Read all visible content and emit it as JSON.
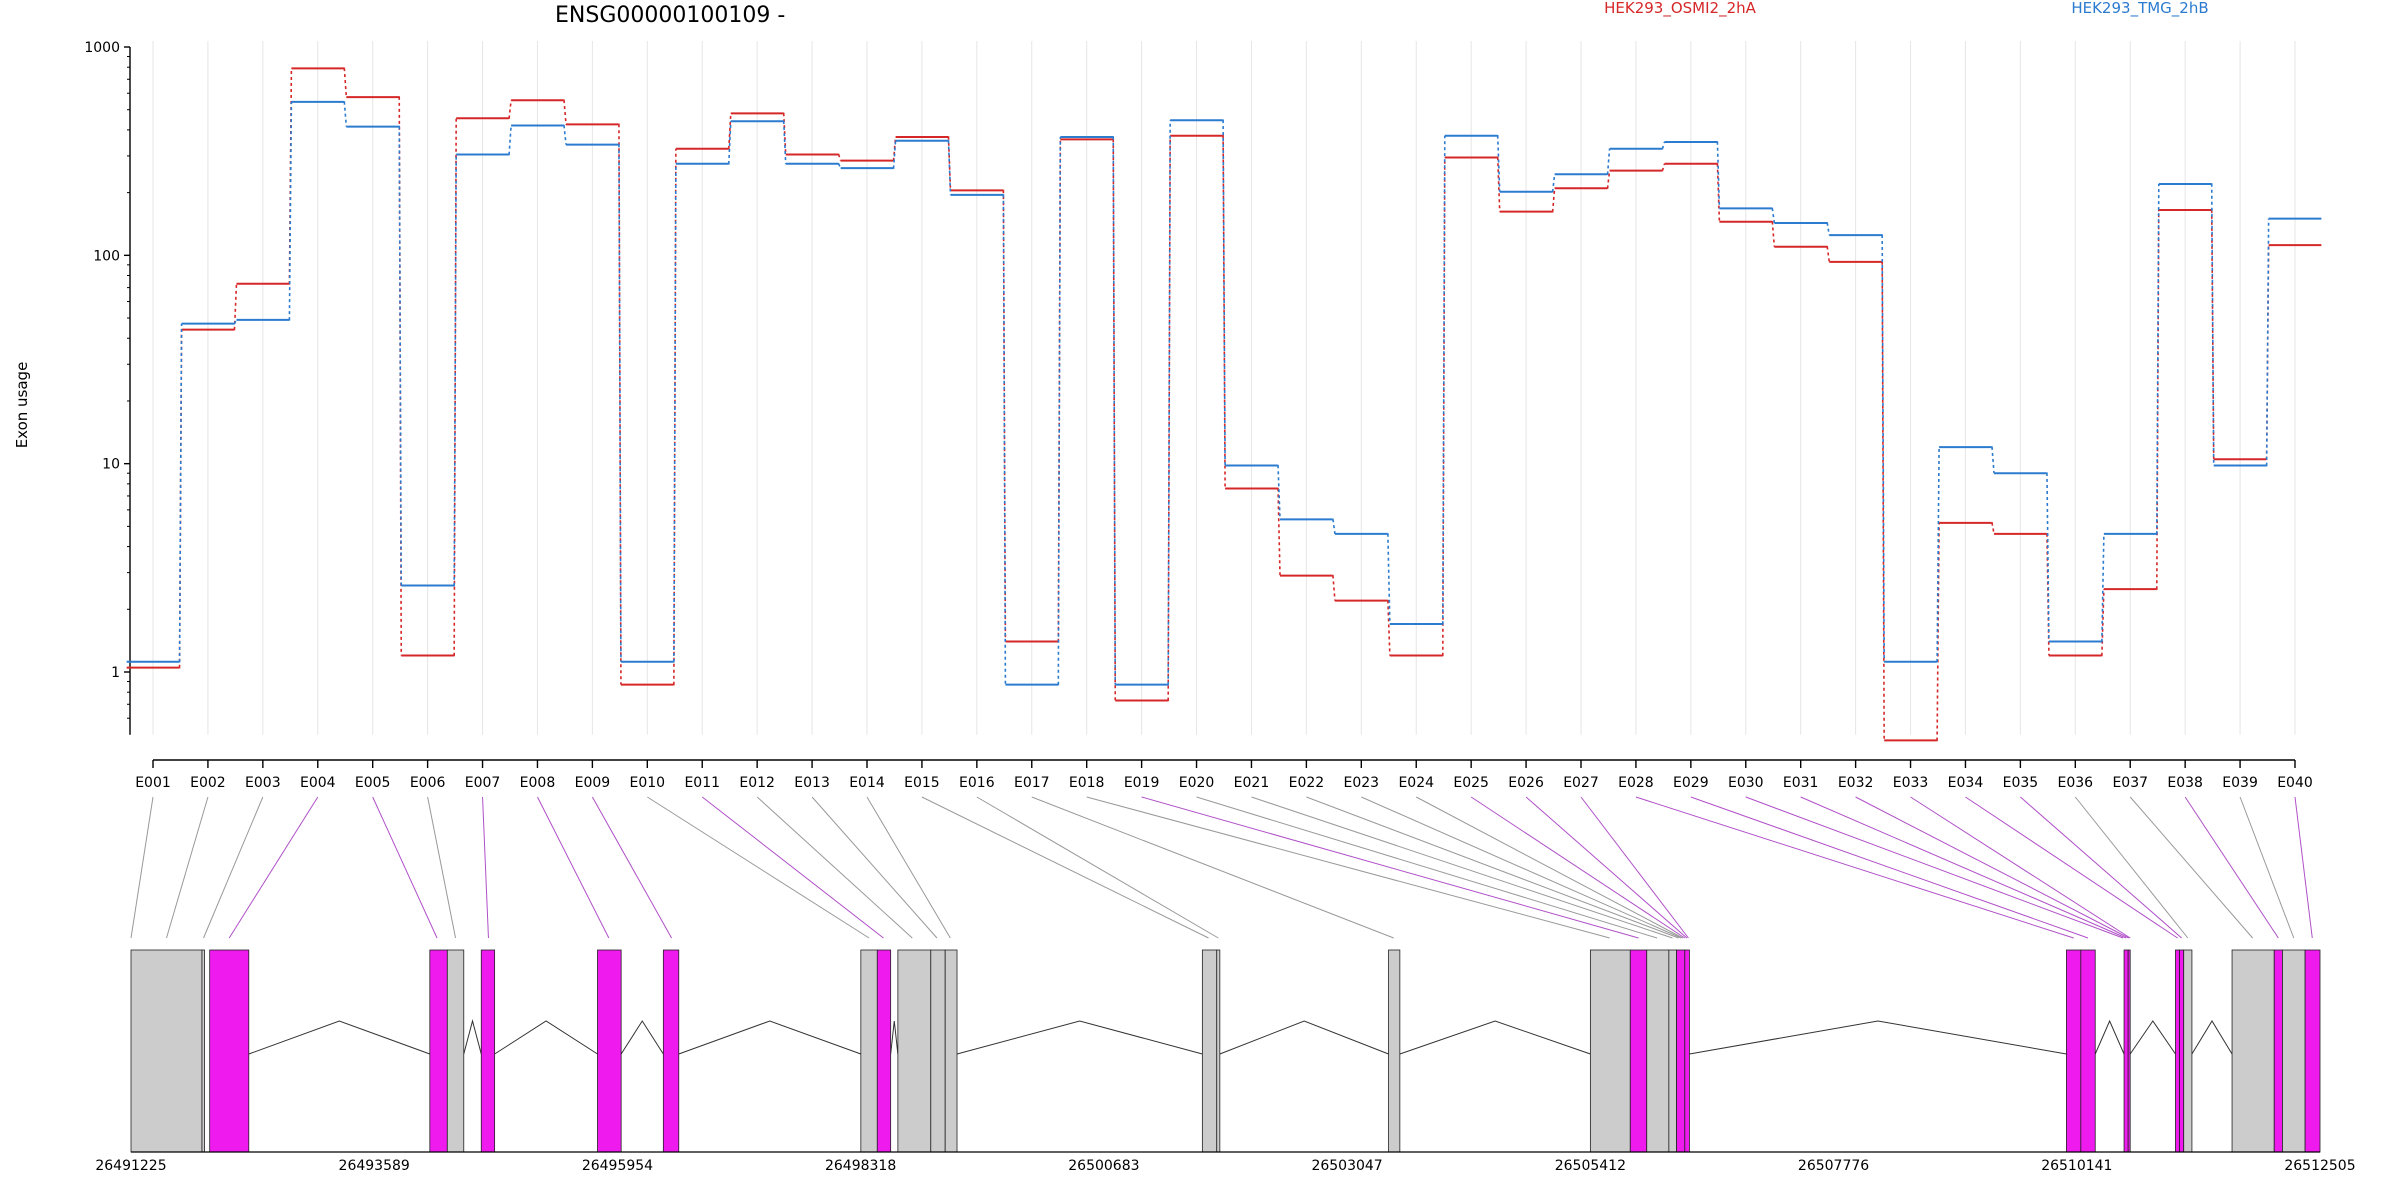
{
  "chart_data": {
    "type": "line",
    "title": "ENSG00000100109 -",
    "ylabel": "Exon usage",
    "xlabel": "",
    "yscale": "log",
    "ylim": [
      0.5,
      1000
    ],
    "yticks": [
      "1000",
      "100",
      "10",
      "1"
    ],
    "yticks_values": [
      1000,
      100,
      10,
      1
    ],
    "categories": [
      "E001",
      "E002",
      "E003",
      "E004",
      "E005",
      "E006",
      "E007",
      "E008",
      "E009",
      "E010",
      "E011",
      "E012",
      "E013",
      "E014",
      "E015",
      "E016",
      "E017",
      "E018",
      "E019",
      "E020",
      "E021",
      "E022",
      "E023",
      "E024",
      "E025",
      "E026",
      "E027",
      "E028",
      "E029",
      "E030",
      "E031",
      "E032",
      "E033",
      "E034",
      "E035",
      "E036",
      "E037",
      "E038",
      "E039",
      "E040"
    ],
    "series": [
      {
        "name": "HEK293_OSMI2_2hA",
        "color": "#d62728",
        "values": [
          1.05,
          44,
          73,
          790,
          575,
          1.2,
          455,
          555,
          425,
          0.87,
          325,
          480,
          305,
          285,
          370,
          205,
          1.4,
          360,
          0.73,
          375,
          7.6,
          2.9,
          2.2,
          1.2,
          295,
          162,
          210,
          255,
          275,
          145,
          110,
          93,
          0.47,
          5.2,
          4.6,
          1.2,
          2.5,
          165,
          10.5,
          112
        ]
      },
      {
        "name": "HEK293_TMG_2hB",
        "color": "#2b7bcf",
        "values": [
          1.12,
          47,
          49,
          545,
          415,
          2.6,
          305,
          420,
          340,
          1.12,
          275,
          440,
          275,
          262,
          355,
          195,
          0.87,
          370,
          0.87,
          445,
          9.8,
          5.4,
          4.6,
          1.7,
          375,
          202,
          245,
          325,
          350,
          168,
          143,
          125,
          1.12,
          12,
          9.0,
          1.4,
          4.6,
          220,
          9.8,
          150
        ]
      }
    ],
    "gene_model": {
      "coordinates": [
        "26491225",
        "26493589",
        "26495954",
        "26498318",
        "26500683",
        "26503047",
        "26505412",
        "26507776",
        "26510141",
        "26512505"
      ],
      "coordinate_values": [
        26491225,
        26493589,
        26495954,
        26498318,
        26500683,
        26503047,
        26505412,
        26507776,
        26510141,
        26512505
      ],
      "exons": [
        {
          "start": 26491225,
          "end": 26491915,
          "significant": false
        },
        {
          "start": 26491915,
          "end": 26491940,
          "significant": false
        },
        {
          "start": 26491990,
          "end": 26492370,
          "significant": true
        },
        {
          "start": 26494130,
          "end": 26494300,
          "significant": true
        },
        {
          "start": 26494300,
          "end": 26494460,
          "significant": false
        },
        {
          "start": 26494630,
          "end": 26494760,
          "significant": true
        },
        {
          "start": 26495760,
          "end": 26495990,
          "significant": true
        },
        {
          "start": 26496400,
          "end": 26496550,
          "significant": true
        },
        {
          "start": 26498320,
          "end": 26498480,
          "significant": false
        },
        {
          "start": 26498480,
          "end": 26498610,
          "significant": true
        },
        {
          "start": 26498680,
          "end": 26499000,
          "significant": false
        },
        {
          "start": 26499000,
          "end": 26499140,
          "significant": false
        },
        {
          "start": 26499140,
          "end": 26499255,
          "significant": false
        },
        {
          "start": 26501640,
          "end": 26501780,
          "significant": false
        },
        {
          "start": 26501780,
          "end": 26501810,
          "significant": false
        },
        {
          "start": 26503450,
          "end": 26503560,
          "significant": false
        },
        {
          "start": 26505412,
          "end": 26505800,
          "significant": false
        },
        {
          "start": 26505800,
          "end": 26505960,
          "significant": true
        },
        {
          "start": 26505960,
          "end": 26506175,
          "significant": false
        },
        {
          "start": 26506175,
          "end": 26506250,
          "significant": false
        },
        {
          "start": 26506250,
          "end": 26506330,
          "significant": true
        },
        {
          "start": 26506330,
          "end": 26506375,
          "significant": true
        },
        {
          "start": 26510040,
          "end": 26510180,
          "significant": true
        },
        {
          "start": 26510180,
          "end": 26510320,
          "significant": true
        },
        {
          "start": 26510600,
          "end": 26510640,
          "significant": true
        },
        {
          "start": 26510640,
          "end": 26510660,
          "significant": true
        },
        {
          "start": 26511100,
          "end": 26511140,
          "significant": true
        },
        {
          "start": 26511140,
          "end": 26511180,
          "significant": true
        },
        {
          "start": 26511180,
          "end": 26511260,
          "significant": false
        },
        {
          "start": 26511650,
          "end": 26512060,
          "significant": false
        },
        {
          "start": 26512060,
          "end": 26512140,
          "significant": true
        },
        {
          "start": 26512140,
          "end": 26512360,
          "significant": false
        },
        {
          "start": 26512360,
          "end": 26512505,
          "significant": true
        }
      ],
      "exon_mapping": [
        {
          "exon": "E001",
          "pos": 26491225,
          "significant": false
        },
        {
          "exon": "E002",
          "pos": 26491570,
          "significant": false
        },
        {
          "exon": "E003",
          "pos": 26491930,
          "significant": false
        },
        {
          "exon": "E004",
          "pos": 26492180,
          "significant": true
        },
        {
          "exon": "E005",
          "pos": 26494200,
          "significant": true
        },
        {
          "exon": "E006",
          "pos": 26494380,
          "significant": false
        },
        {
          "exon": "E007",
          "pos": 26494700,
          "significant": true
        },
        {
          "exon": "E008",
          "pos": 26495870,
          "significant": true
        },
        {
          "exon": "E009",
          "pos": 26496480,
          "significant": true
        },
        {
          "exon": "E010",
          "pos": 26498400,
          "significant": false
        },
        {
          "exon": "E011",
          "pos": 26498540,
          "significant": true
        },
        {
          "exon": "E012",
          "pos": 26498820,
          "significant": false
        },
        {
          "exon": "E013",
          "pos": 26499060,
          "significant": false
        },
        {
          "exon": "E014",
          "pos": 26499190,
          "significant": false
        },
        {
          "exon": "E015",
          "pos": 26501700,
          "significant": false
        },
        {
          "exon": "E016",
          "pos": 26501795,
          "significant": false
        },
        {
          "exon": "E017",
          "pos": 26503500,
          "significant": false
        },
        {
          "exon": "E018",
          "pos": 26505600,
          "significant": false
        },
        {
          "exon": "E019",
          "pos": 26505880,
          "significant": true
        },
        {
          "exon": "E020",
          "pos": 26506060,
          "significant": false
        },
        {
          "exon": "E021",
          "pos": 26506210,
          "significant": false
        },
        {
          "exon": "E022",
          "pos": 26506270,
          "significant": false
        },
        {
          "exon": "E023",
          "pos": 26506295,
          "significant": false
        },
        {
          "exon": "E024",
          "pos": 26506310,
          "significant": false
        },
        {
          "exon": "E025",
          "pos": 26506330,
          "significant": true
        },
        {
          "exon": "E026",
          "pos": 26506350,
          "significant": true
        },
        {
          "exon": "E027",
          "pos": 26506365,
          "significant": true
        },
        {
          "exon": "E028",
          "pos": 26510110,
          "significant": true
        },
        {
          "exon": "E029",
          "pos": 26510250,
          "significant": true
        },
        {
          "exon": "E030",
          "pos": 26510590,
          "significant": true
        },
        {
          "exon": "E031",
          "pos": 26510620,
          "significant": true
        },
        {
          "exon": "E032",
          "pos": 26510645,
          "significant": true
        },
        {
          "exon": "E033",
          "pos": 26510660,
          "significant": true
        },
        {
          "exon": "E034",
          "pos": 26511120,
          "significant": true
        },
        {
          "exon": "E035",
          "pos": 26511160,
          "significant": true
        },
        {
          "exon": "E036",
          "pos": 26511220,
          "significant": false
        },
        {
          "exon": "E037",
          "pos": 26511850,
          "significant": false
        },
        {
          "exon": "E038",
          "pos": 26512100,
          "significant": true
        },
        {
          "exon": "E039",
          "pos": 26512250,
          "significant": false
        },
        {
          "exon": "E040",
          "pos": 26512430,
          "significant": true
        }
      ]
    }
  },
  "colors": {
    "significant_exon": "#ee1aee",
    "non_significant_exon": "#cccccc",
    "mapping_significant": "#b050c8",
    "mapping_non_significant": "#999999",
    "grid": "#e6e6e6"
  }
}
